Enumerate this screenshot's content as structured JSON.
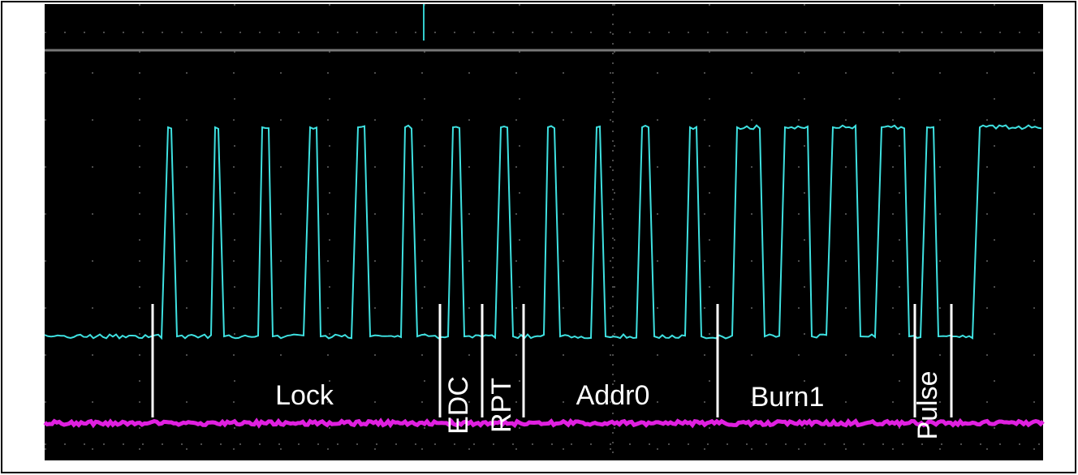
{
  "labels": {
    "lock": "Lock",
    "edc": "EDC",
    "rpt": "RPT",
    "addr0": "Addr0",
    "burn1": "Burn1",
    "pulse": "Pulse"
  }
}
